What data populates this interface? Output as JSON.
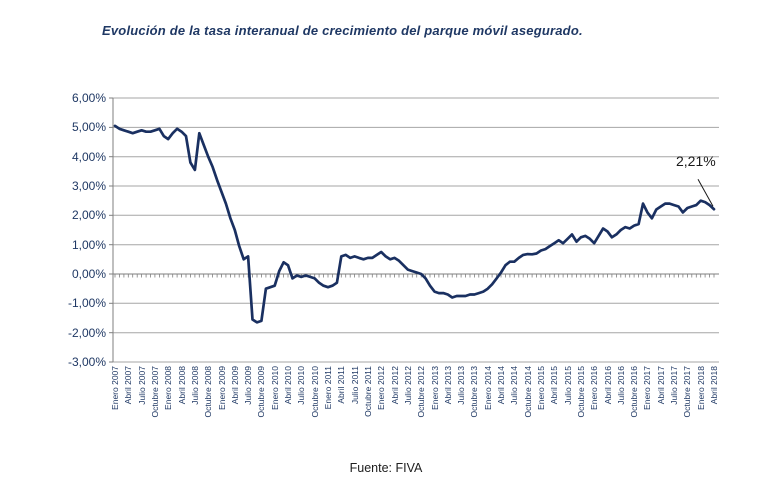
{
  "title": "Evolución de la tasa interanual de crecimiento del parque móvil asegurado.",
  "source": "Fuente: FIVA",
  "annotation": {
    "label": "2,21%"
  },
  "chart_data": {
    "type": "line",
    "title": "Evolución de la tasa interanual de crecimiento del parque móvil asegurado.",
    "xlabel": "",
    "ylabel": "",
    "series_name": "Tasa interanual de crecimiento del parque móvil asegurado",
    "frequency": "monthly",
    "x_start": "Enero 2007",
    "x_end": "Abril 2018",
    "ylim": [
      -3,
      6
    ],
    "grid": true,
    "legend": "none",
    "line_color": "#1A3061",
    "grid_color": "#A6A6A6",
    "axis_color": "#7F7F7F",
    "last_value_label": "2,21%",
    "y_tick_labels": [
      "6,00%",
      "5,00%",
      "4,00%",
      "3,00%",
      "2,00%",
      "1,00%",
      "0,00%",
      "-1,00%",
      "-2,00%",
      "-3,00%"
    ],
    "x_tick_labels": [
      "Enero 2007",
      "Abril 2007",
      "Julio 2007",
      "Octubre 2007",
      "Enero 2008",
      "Abril 2008",
      "Julio 2008",
      "Octubre 2008",
      "Enero 2009",
      "Abril 2009",
      "Julio 2009",
      "Octubre 2009",
      "Enero 2010",
      "Abril 2010",
      "Julio 2010",
      "Octubre 2010",
      "Enero 2011",
      "Abril 2011",
      "Julio 2011",
      "Octubre 2011",
      "Enero 2012",
      "Abril 2012",
      "Julio 2012",
      "Octubre 2012",
      "Enero 2013",
      "Abril 2013",
      "Julio 2013",
      "Octubre 2013",
      "Enero 2014",
      "Abril 2014",
      "Julio 2014",
      "Octubre 2014",
      "Enero 2015",
      "Abril 2015",
      "Julio 2015",
      "Octubre 2015",
      "Enero 2016",
      "Abril 2016",
      "Julio 2016",
      "Octubre 2016",
      "Enero 2017",
      "Abril 2017",
      "Julio 2017",
      "Octubre 2017",
      "Enero 2018",
      "Abril 2018"
    ],
    "values": [
      5.05,
      4.95,
      4.9,
      4.85,
      4.8,
      4.85,
      4.9,
      4.85,
      4.85,
      4.9,
      4.95,
      4.7,
      4.6,
      4.8,
      4.95,
      4.85,
      4.7,
      3.8,
      3.55,
      4.8,
      4.4,
      4.0,
      3.65,
      3.2,
      2.8,
      2.4,
      1.9,
      1.5,
      0.95,
      0.5,
      0.6,
      -1.55,
      -1.65,
      -1.6,
      -0.5,
      -0.45,
      -0.4,
      0.1,
      0.4,
      0.3,
      -0.15,
      -0.05,
      -0.1,
      -0.05,
      -0.1,
      -0.15,
      -0.3,
      -0.4,
      -0.45,
      -0.4,
      -0.3,
      0.6,
      0.65,
      0.55,
      0.6,
      0.55,
      0.5,
      0.55,
      0.55,
      0.65,
      0.75,
      0.6,
      0.5,
      0.55,
      0.45,
      0.3,
      0.15,
      0.1,
      0.05,
      0.0,
      -0.15,
      -0.4,
      -0.6,
      -0.65,
      -0.65,
      -0.7,
      -0.8,
      -0.75,
      -0.75,
      -0.75,
      -0.7,
      -0.7,
      -0.65,
      -0.6,
      -0.5,
      -0.35,
      -0.15,
      0.05,
      0.3,
      0.42,
      0.42,
      0.55,
      0.65,
      0.68,
      0.67,
      0.7,
      0.8,
      0.85,
      0.95,
      1.05,
      1.15,
      1.05,
      1.2,
      1.35,
      1.1,
      1.25,
      1.3,
      1.2,
      1.05,
      1.3,
      1.55,
      1.45,
      1.25,
      1.35,
      1.5,
      1.6,
      1.55,
      1.65,
      1.7,
      2.4,
      2.1,
      1.9,
      2.2,
      2.3,
      2.4,
      2.4,
      2.35,
      2.3,
      2.1,
      2.25,
      2.3,
      2.35,
      2.5,
      2.45,
      2.35,
      2.21
    ]
  }
}
